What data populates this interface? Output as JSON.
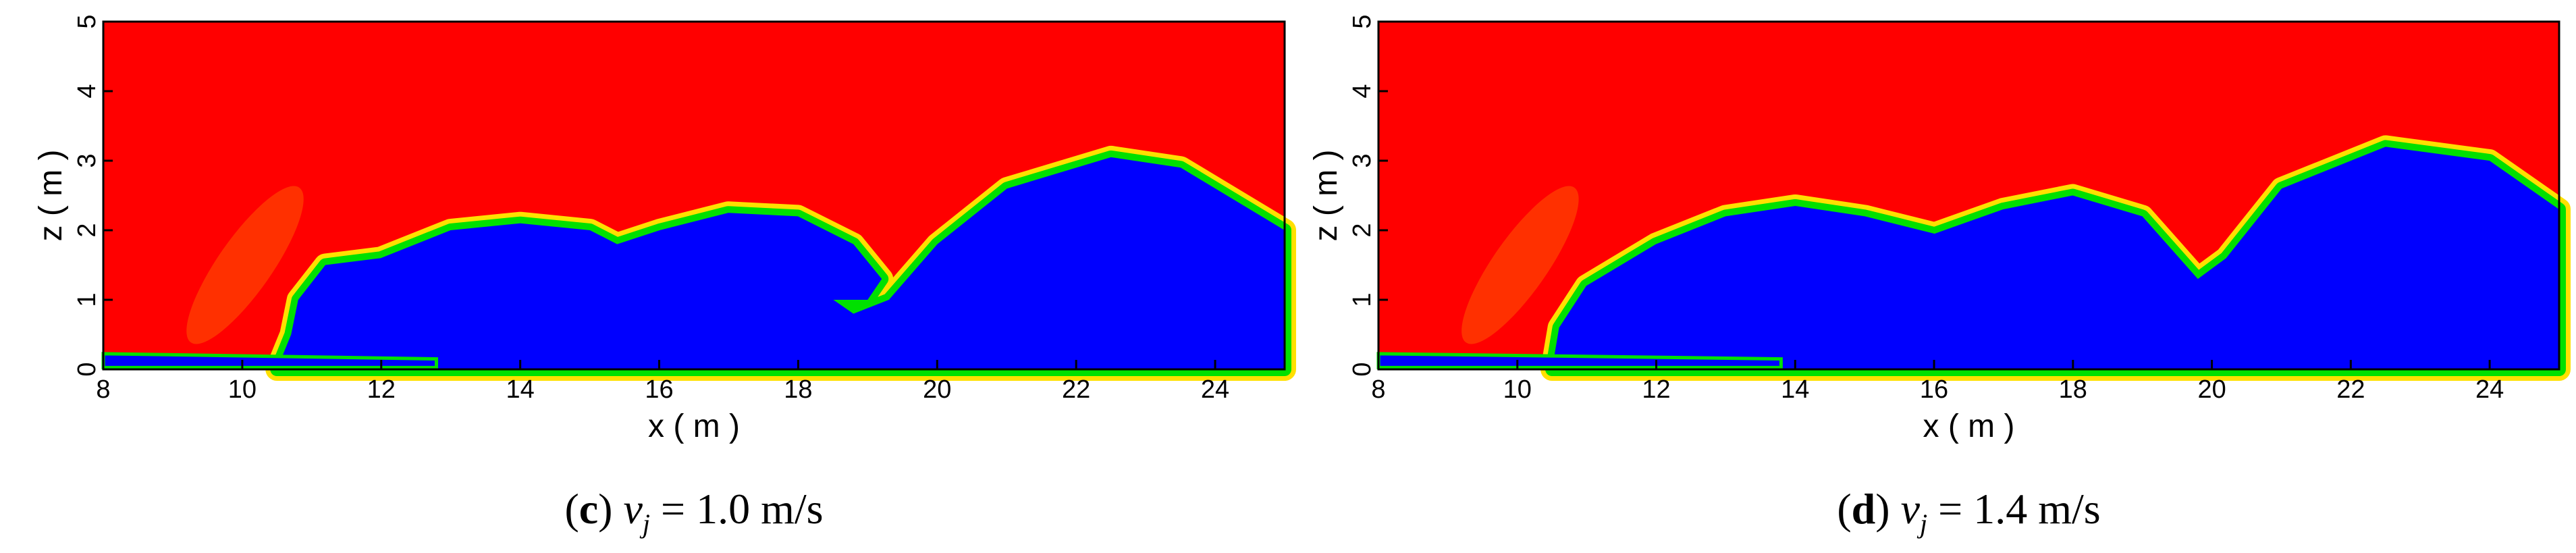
{
  "chart_data": [
    {
      "type": "contour",
      "xlabel": "x ( m )",
      "ylabel": "z ( m )",
      "xlim": [
        8,
        25
      ],
      "ylim": [
        0,
        5
      ],
      "xticks": [
        8,
        10,
        12,
        14,
        16,
        18,
        20,
        22,
        24
      ],
      "yticks": [
        0,
        1,
        2,
        3,
        4,
        5
      ],
      "caption": {
        "open": "(",
        "letter": "c",
        "close": ")",
        "symbol": "v",
        "subscript": "j",
        "rest": "= 1.0 m/s"
      }
    },
    {
      "type": "contour",
      "xlabel": "x ( m )",
      "ylabel": "z ( m )",
      "xlim": [
        8,
        25
      ],
      "ylim": [
        0,
        5
      ],
      "xticks": [
        8,
        10,
        12,
        14,
        16,
        18,
        20,
        22,
        24
      ],
      "yticks": [
        0,
        1,
        2,
        3,
        4,
        5
      ],
      "caption": {
        "open": "(",
        "letter": "d",
        "close": ")",
        "symbol": "v",
        "subscript": "j",
        "rest": "= 1.4 m/s"
      }
    }
  ]
}
